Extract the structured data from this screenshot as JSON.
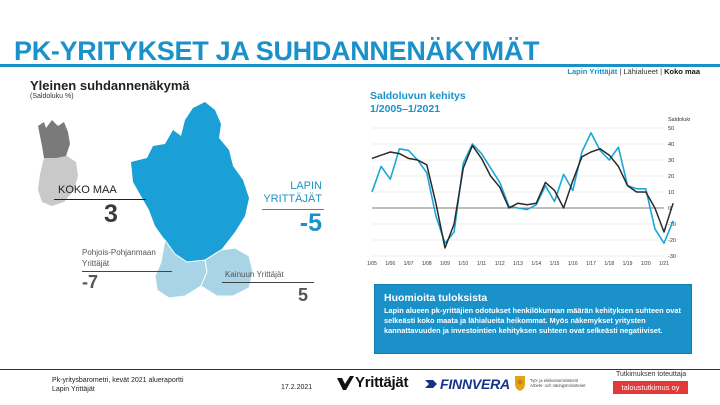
{
  "header": {
    "title": "PK-YRITYKSET JA SUHDANNENÄKYMÄT",
    "nav": {
      "active": "Lapin Yrittäjät",
      "sep1": " | ",
      "mid": "Lähialueet",
      "sep2": " | ",
      "last": "Koko maa"
    }
  },
  "left": {
    "title": "Yleinen suhdannenäkymä",
    "subtitle": "(Saldoluku %)",
    "koko": {
      "label": "KOKO MAA",
      "value": "3"
    },
    "lapin": {
      "label_line1": "LAPIN",
      "label_line2": "YRITTÄJÄT",
      "value": "-5"
    },
    "pohjois": {
      "label_line1": "Pohjois-Pohjanmaan",
      "label_line2": "Yrittäjät",
      "value": "-7"
    },
    "kainuu": {
      "label": "Kainuun Yrittäjät",
      "value": "5"
    }
  },
  "chart": {
    "title_line1": "Saldoluvun kehitys",
    "title_line2": "1/2005–1/2021"
  },
  "chart_data": {
    "type": "line",
    "title": "Saldoluvun kehitys 1/2005–1/2021",
    "ylabel": "Saldoluku",
    "ylim": [
      -30,
      50
    ],
    "yticks": [
      50,
      40,
      30,
      20,
      10,
      0,
      -10,
      -20,
      -30
    ],
    "categories": [
      "1/05",
      "1/06",
      "1/07",
      "1/08",
      "1/09",
      "1/10",
      "1/11",
      "1/12",
      "1/13",
      "1/14",
      "1/15",
      "1/16",
      "1/17",
      "1/18",
      "1/19",
      "1/20",
      "1/21"
    ],
    "grid": true,
    "series": [
      {
        "color": "#1aa7d8",
        "x": [
          0,
          0.5,
          1,
          1.5,
          2,
          2.5,
          3,
          3.5,
          4,
          4.5,
          5,
          5.5,
          6,
          6.5,
          7,
          7.5,
          8,
          8.5,
          9,
          9.5,
          10,
          10.5,
          11,
          11.5,
          12,
          12.5,
          13,
          13.5,
          14,
          14.5,
          15,
          15.5,
          16,
          16.5
        ],
        "values": [
          10,
          26,
          18,
          37,
          36,
          30,
          22,
          -5,
          -22,
          -15,
          28,
          40,
          34,
          25,
          16,
          1,
          0,
          -1,
          2,
          14,
          4,
          21,
          11,
          35,
          47,
          36,
          30,
          38,
          14,
          12,
          12,
          -13,
          -22,
          -8
        ]
      },
      {
        "color": "#2a2a2a",
        "x": [
          0,
          0.5,
          1,
          1.5,
          2,
          2.5,
          3,
          3.5,
          4,
          4.5,
          5,
          5.5,
          6,
          6.5,
          7,
          7.5,
          8,
          8.5,
          9,
          9.5,
          10,
          10.5,
          11,
          11.5,
          12,
          12.5,
          13,
          13.5,
          14,
          14.5,
          15,
          15.5,
          16,
          16.5
        ],
        "values": [
          31,
          33,
          35,
          34,
          31,
          30,
          27,
          3,
          -25,
          -10,
          25,
          39,
          31,
          20,
          13,
          0,
          3,
          2,
          3,
          16,
          11,
          0,
          17,
          32,
          35,
          37,
          33,
          26,
          14,
          10,
          10,
          0,
          -15,
          3
        ]
      }
    ]
  },
  "info": {
    "title": "Huomioita tuloksista",
    "text": "Lapin alueen pk-yrittäjien odotukset henkilökunnan määrän kehityksen suhteen ovat selkeästi koko maata ja lähialueita heikommat. Myös näkemykset yritysten kannattavuuden ja investointien kehityksen suhteen ovat selkeästi negatiiviset."
  },
  "footer": {
    "line1": "Pk-yritysbarometri, kevät 2021 alueraportti",
    "line2": "Lapin Yrittäjät",
    "date": "17.2.2021",
    "logo_yrittajat": "Yrittäjät",
    "logo_finnvera": "FINNVERA",
    "logo_tem_line1": "Työ- ja elinkeinoministeriö",
    "logo_tem_line2": "Arbets- och näringsministeriet",
    "tt_label": "Tutkimuksen toteuttaja",
    "tt_badge": "taloustutkimus oy"
  },
  "colors": {
    "accent": "#1a92c9",
    "lapland_fill": "#1a9fd6",
    "neighbour_fill": "#a8d4e6",
    "finland_fill": "#c9c9c9",
    "finland_north_fill": "#7a7a7a"
  }
}
